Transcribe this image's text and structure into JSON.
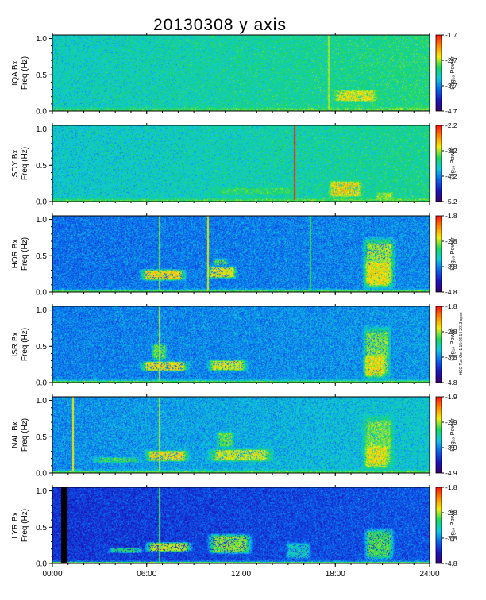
{
  "chart_data": {
    "type": "heatmap",
    "title": "20130308 y axis",
    "stamp": "HSC Tue Oct 1 15:06:14 2013 spec",
    "xlabel": "",
    "x_ticks": [
      "00:00",
      "06:00",
      "12:00",
      "18:00",
      "24:00"
    ],
    "x_range_hours": [
      0,
      24
    ],
    "y_ticks": [
      "0.0",
      "0.5",
      "1.0"
    ],
    "ylim": [
      0,
      1.05
    ],
    "colorbar_label": "Log₁₀ Power",
    "colorscale": [
      "#38006e",
      "#1a14c0",
      "#0a64f0",
      "#10c8e0",
      "#18d860",
      "#f0ee10",
      "#ff8800",
      "#ff1010"
    ],
    "panels": [
      {
        "station": "IQA Bx",
        "ylabel": "Freq (Hz)",
        "cbar_ticks": [
          "-1.7",
          "-2.7",
          "-3.7",
          "-4.7"
        ],
        "cbar_range": [
          -4.7,
          -1.7
        ],
        "background_level": 0.46,
        "noise_trend": 0.08
      },
      {
        "station": "SDY Bx",
        "ylabel": "Freq (Hz)",
        "cbar_ticks": [
          "-2.2",
          "-3.2",
          "-4.2",
          "-5.2"
        ],
        "cbar_range": [
          -5.2,
          -2.2
        ],
        "background_level": 0.44,
        "noise_trend": 0.08
      },
      {
        "station": "HOR Bx",
        "ylabel": "Freq (Hz)",
        "cbar_ticks": [
          "-1.8",
          "-2.8",
          "-3.8",
          "-4.8"
        ],
        "cbar_range": [
          -4.8,
          -1.8
        ],
        "background_level": 0.3,
        "noise_trend": 0.04
      },
      {
        "station": "ISR Bx",
        "ylabel": "Freq (Hz)",
        "cbar_ticks": [
          "-1.8",
          "-2.8",
          "-3.8",
          "-4.8"
        ],
        "cbar_range": [
          -4.8,
          -1.8
        ],
        "background_level": 0.32,
        "noise_trend": 0.04
      },
      {
        "station": "NAL Bx",
        "ylabel": "Freq (Hz)",
        "cbar_ticks": [
          "-1.9",
          "-2.9",
          "-3.9",
          "-4.9"
        ],
        "cbar_range": [
          -4.9,
          -1.9
        ],
        "background_level": 0.34,
        "noise_trend": 0.1
      },
      {
        "station": "LYR Bx",
        "ylabel": "Freq (Hz)",
        "cbar_ticks": [
          "-1.8",
          "-2.8",
          "-3.8",
          "-4.8"
        ],
        "cbar_range": [
          -4.8,
          -1.8
        ],
        "background_level": 0.2,
        "noise_trend": 0.06
      }
    ],
    "features": [
      {
        "panel": 0,
        "kind": "band",
        "t0": 17.8,
        "t1": 20.8,
        "f0": 0.12,
        "f1": 0.3,
        "level": 0.72
      },
      {
        "panel": 0,
        "kind": "line",
        "t": 17.6,
        "level": 0.66
      },
      {
        "panel": 1,
        "kind": "band",
        "t0": 17.5,
        "t1": 19.8,
        "f0": 0.05,
        "f1": 0.3,
        "level": 0.76
      },
      {
        "panel": 1,
        "kind": "band",
        "t0": 20.5,
        "t1": 21.8,
        "f0": 0.02,
        "f1": 0.14,
        "level": 0.66
      },
      {
        "panel": 1,
        "kind": "band",
        "t0": 10.0,
        "t1": 16.0,
        "f0": 0.08,
        "f1": 0.2,
        "level": 0.58
      },
      {
        "panel": 1,
        "kind": "line",
        "t": 15.4,
        "level": 0.98
      },
      {
        "panel": 2,
        "kind": "band",
        "t0": 5.5,
        "t1": 8.6,
        "f0": 0.15,
        "f1": 0.32,
        "level": 0.74
      },
      {
        "panel": 2,
        "kind": "band",
        "t0": 9.8,
        "t1": 11.8,
        "f0": 0.18,
        "f1": 0.36,
        "level": 0.72
      },
      {
        "panel": 2,
        "kind": "band",
        "t0": 10.2,
        "t1": 11.2,
        "f0": 0.36,
        "f1": 0.46,
        "level": 0.62
      },
      {
        "panel": 2,
        "kind": "band",
        "t0": 19.7,
        "t1": 21.9,
        "f0": 0.03,
        "f1": 0.78,
        "level": 0.66
      },
      {
        "panel": 2,
        "kind": "band",
        "t0": 19.8,
        "t1": 21.6,
        "f0": 0.05,
        "f1": 0.45,
        "level": 0.74
      },
      {
        "panel": 2,
        "kind": "line",
        "t": 9.9,
        "level": 0.7
      },
      {
        "panel": 2,
        "kind": "line",
        "t": 6.8,
        "level": 0.62
      },
      {
        "panel": 2,
        "kind": "line",
        "t": 16.4,
        "level": 0.58
      },
      {
        "panel": 3,
        "kind": "band",
        "t0": 5.5,
        "t1": 8.8,
        "f0": 0.15,
        "f1": 0.3,
        "level": 0.74
      },
      {
        "panel": 3,
        "kind": "band",
        "t0": 9.8,
        "t1": 12.5,
        "f0": 0.15,
        "f1": 0.32,
        "level": 0.7
      },
      {
        "panel": 3,
        "kind": "band",
        "t0": 6.3,
        "t1": 7.3,
        "f0": 0.3,
        "f1": 0.55,
        "level": 0.62
      },
      {
        "panel": 3,
        "kind": "band",
        "t0": 19.7,
        "t1": 21.6,
        "f0": 0.03,
        "f1": 0.8,
        "level": 0.64
      },
      {
        "panel": 3,
        "kind": "band",
        "t0": 19.8,
        "t1": 21.2,
        "f0": 0.05,
        "f1": 0.4,
        "level": 0.74
      },
      {
        "panel": 3,
        "kind": "line",
        "t": 6.8,
        "level": 0.66
      },
      {
        "panel": 4,
        "kind": "band",
        "t0": 2.5,
        "t1": 5.8,
        "f0": 0.14,
        "f1": 0.22,
        "level": 0.58
      },
      {
        "panel": 4,
        "kind": "band",
        "t0": 5.8,
        "t1": 8.8,
        "f0": 0.15,
        "f1": 0.32,
        "level": 0.74
      },
      {
        "panel": 4,
        "kind": "band",
        "t0": 9.8,
        "t1": 14.2,
        "f0": 0.15,
        "f1": 0.34,
        "level": 0.7
      },
      {
        "panel": 4,
        "kind": "band",
        "t0": 10.4,
        "t1": 11.6,
        "f0": 0.34,
        "f1": 0.58,
        "level": 0.62
      },
      {
        "panel": 4,
        "kind": "band",
        "t0": 19.7,
        "t1": 21.8,
        "f0": 0.03,
        "f1": 0.82,
        "level": 0.64
      },
      {
        "panel": 4,
        "kind": "band",
        "t0": 19.8,
        "t1": 21.4,
        "f0": 0.05,
        "f1": 0.4,
        "level": 0.74
      },
      {
        "panel": 4,
        "kind": "line",
        "t": 1.3,
        "level": 0.72
      },
      {
        "panel": 4,
        "kind": "line",
        "t": 6.8,
        "level": 0.66
      },
      {
        "panel": 5,
        "kind": "band",
        "t0": 3.5,
        "t1": 5.8,
        "f0": 0.14,
        "f1": 0.22,
        "level": 0.54
      },
      {
        "panel": 5,
        "kind": "band",
        "t0": 5.8,
        "t1": 9.0,
        "f0": 0.15,
        "f1": 0.3,
        "level": 0.68
      },
      {
        "panel": 5,
        "kind": "band",
        "t0": 9.8,
        "t1": 12.8,
        "f0": 0.12,
        "f1": 0.42,
        "level": 0.64
      },
      {
        "panel": 5,
        "kind": "band",
        "t0": 14.8,
        "t1": 16.5,
        "f0": 0.05,
        "f1": 0.3,
        "level": 0.46
      },
      {
        "panel": 5,
        "kind": "band",
        "t0": 19.8,
        "t1": 21.8,
        "f0": 0.03,
        "f1": 0.5,
        "level": 0.6
      },
      {
        "panel": 5,
        "kind": "line",
        "t": 6.8,
        "level": 0.6
      },
      {
        "panel": 5,
        "kind": "gap",
        "t0": 0.55,
        "t1": 0.95
      }
    ]
  }
}
